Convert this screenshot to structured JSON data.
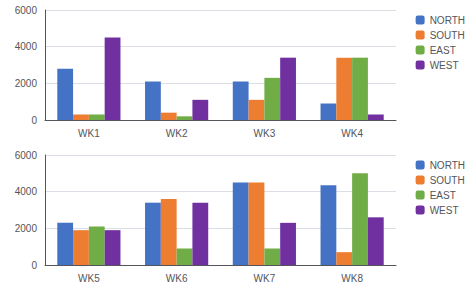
{
  "chart_data": [
    {
      "type": "bar",
      "categories": [
        "WK1",
        "WK2",
        "WK3",
        "WK4"
      ],
      "series": [
        {
          "name": "NORTH",
          "color": "#4472C4",
          "values": [
            2800,
            2100,
            2100,
            900
          ]
        },
        {
          "name": "SOUTH",
          "color": "#ED7D31",
          "values": [
            300,
            400,
            1100,
            3400
          ]
        },
        {
          "name": "EAST",
          "color": "#70AD47",
          "values": [
            300,
            200,
            2300,
            3400
          ]
        },
        {
          "name": "WEST",
          "color": "#7030A0",
          "values": [
            4500,
            1100,
            3400,
            300
          ]
        }
      ],
      "ylim": [
        0,
        6000
      ],
      "yticks": [
        0,
        2000,
        4000,
        6000
      ],
      "grid": true,
      "legend": "upper right"
    },
    {
      "type": "bar",
      "categories": [
        "WK5",
        "WK6",
        "WK7",
        "WK8"
      ],
      "series": [
        {
          "name": "NORTH",
          "color": "#4472C4",
          "values": [
            2300,
            3400,
            4500,
            4350
          ]
        },
        {
          "name": "SOUTH",
          "color": "#ED7D31",
          "values": [
            1900,
            3600,
            4500,
            700
          ]
        },
        {
          "name": "EAST",
          "color": "#70AD47",
          "values": [
            2100,
            900,
            900,
            5000
          ]
        },
        {
          "name": "WEST",
          "color": "#7030A0",
          "values": [
            1900,
            3400,
            2300,
            2600
          ]
        }
      ],
      "ylim": [
        0,
        6000
      ],
      "yticks": [
        0,
        2000,
        4000,
        6000
      ],
      "grid": true,
      "legend": "upper right"
    }
  ]
}
